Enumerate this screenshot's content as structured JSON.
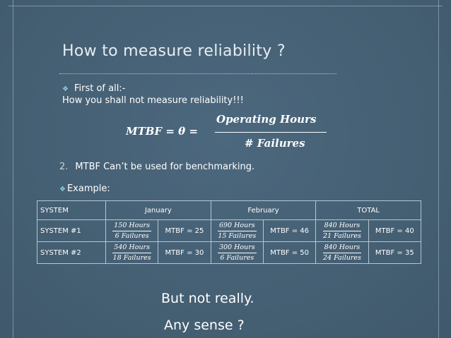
{
  "slide": {
    "title": "How to measure reliability ?",
    "bullet_first": "First of all:-",
    "line_not": "How you shall not measure reliability!!!",
    "formula": {
      "lhs": "MTBF = θ =",
      "numerator": "Operating Hours",
      "denominator": "# Failures"
    },
    "point2_number": "2.",
    "point2_text": "MTBF Can’t be used for benchmarking.",
    "example_label": "Example:",
    "closing_1": "But not really.",
    "closing_2": "Any sense ?",
    "bullet_icon": "diamond-bullet-icon"
  },
  "table": {
    "headers": [
      "SYSTEM",
      "January",
      "February",
      "TOTAL"
    ],
    "rows": [
      {
        "system": "SYSTEM #1",
        "jan": {
          "num": "150 Hours",
          "den": "6 Failures",
          "mtbf": "MTBF = 25"
        },
        "feb": {
          "num": "690 Hours",
          "den": "15 Failures",
          "mtbf": "MTBF = 46"
        },
        "total": {
          "num": "840 Hours",
          "den": "21 Failures",
          "mtbf": "MTBF = 40"
        }
      },
      {
        "system": "SYSTEM #2",
        "jan": {
          "num": "540 Hours",
          "den": "18 Failures",
          "mtbf": "MTBF = 30"
        },
        "feb": {
          "num": "300 Hours",
          "den": "6 Failures",
          "mtbf": "MTBF = 50"
        },
        "total": {
          "num": "840 Hours",
          "den": "24 Failures",
          "mtbf": "MTBF = 35"
        }
      }
    ]
  },
  "colors": {
    "background": "#466277",
    "orange": "#ff8a3d",
    "green": "#8fdc6a",
    "diamond": "#8fd0e6"
  }
}
